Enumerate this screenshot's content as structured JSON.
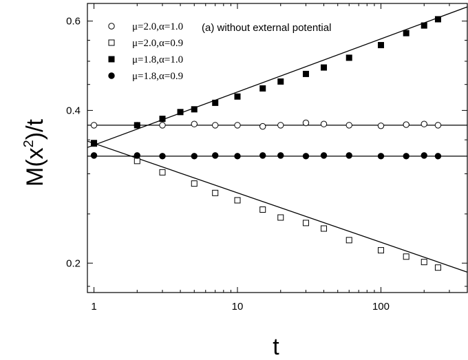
{
  "chart_data": {
    "type": "scatter",
    "title": "",
    "annotation": "(a) without external potential",
    "xlabel": "t",
    "ylabel_main": "M(x",
    "ylabel_sup": "2",
    "ylabel_end": ")/t",
    "x_scale": "log",
    "y_scale": "log",
    "xlim": [
      0.9,
      400
    ],
    "ylim": [
      0.175,
      0.65
    ],
    "x_ticks": [
      1,
      10,
      100
    ],
    "x_tick_labels": [
      "1",
      "10",
      "100"
    ],
    "y_ticks": [
      0.2,
      0.4,
      0.6
    ],
    "y_tick_labels": [
      "0.2",
      "0.4",
      "0.6"
    ],
    "grid": false,
    "legend_position": "top-left",
    "series": [
      {
        "name": "μ=2.0,α=1.0",
        "marker": "open-circle",
        "points": [
          [
            1,
            0.374
          ],
          [
            2,
            0.374
          ],
          [
            3,
            0.374
          ],
          [
            5,
            0.376
          ],
          [
            7,
            0.374
          ],
          [
            10,
            0.374
          ],
          [
            15,
            0.372
          ],
          [
            20,
            0.374
          ],
          [
            30,
            0.378
          ],
          [
            40,
            0.376
          ],
          [
            60,
            0.374
          ],
          [
            100,
            0.373
          ],
          [
            150,
            0.375
          ],
          [
            200,
            0.376
          ],
          [
            250,
            0.374
          ]
        ],
        "fit_line": {
          "x": [
            0.9,
            400
          ],
          "y": [
            0.374,
            0.374
          ]
        }
      },
      {
        "name": "μ=2.0,α=0.9",
        "marker": "open-square",
        "points": [
          [
            1,
            0.344
          ],
          [
            2,
            0.318
          ],
          [
            3,
            0.302
          ],
          [
            5,
            0.287
          ],
          [
            7,
            0.275
          ],
          [
            10,
            0.266
          ],
          [
            15,
            0.255
          ],
          [
            20,
            0.246
          ],
          [
            30,
            0.24
          ],
          [
            40,
            0.234
          ],
          [
            60,
            0.222
          ],
          [
            100,
            0.212
          ],
          [
            150,
            0.206
          ],
          [
            200,
            0.201
          ],
          [
            250,
            0.196
          ]
        ],
        "fit_line": {
          "x": [
            0.9,
            400
          ],
          "y": [
            0.348,
            0.192
          ]
        }
      },
      {
        "name": "μ=1.8,α=1.0",
        "marker": "filled-square",
        "points": [
          [
            1,
            0.345
          ],
          [
            2,
            0.374
          ],
          [
            3,
            0.385
          ],
          [
            4,
            0.397
          ],
          [
            5,
            0.402
          ],
          [
            7,
            0.414
          ],
          [
            10,
            0.426
          ],
          [
            15,
            0.442
          ],
          [
            20,
            0.456
          ],
          [
            30,
            0.472
          ],
          [
            40,
            0.486
          ],
          [
            60,
            0.508
          ],
          [
            100,
            0.538
          ],
          [
            150,
            0.568
          ],
          [
            200,
            0.588
          ],
          [
            250,
            0.605
          ]
        ],
        "fit_line": {
          "x": [
            0.9,
            400
          ],
          "y": [
            0.338,
            0.64
          ]
        }
      },
      {
        "name": "μ=1.8,α=0.9",
        "marker": "filled-circle",
        "points": [
          [
            1,
            0.326
          ],
          [
            2,
            0.326
          ],
          [
            3,
            0.325
          ],
          [
            5,
            0.325
          ],
          [
            7,
            0.326
          ],
          [
            10,
            0.325
          ],
          [
            15,
            0.326
          ],
          [
            20,
            0.326
          ],
          [
            30,
            0.325
          ],
          [
            40,
            0.326
          ],
          [
            60,
            0.326
          ],
          [
            100,
            0.325
          ],
          [
            150,
            0.325
          ],
          [
            200,
            0.326
          ],
          [
            250,
            0.325
          ]
        ],
        "fit_line": {
          "x": [
            0.9,
            400
          ],
          "y": [
            0.325,
            0.325
          ]
        }
      }
    ]
  }
}
